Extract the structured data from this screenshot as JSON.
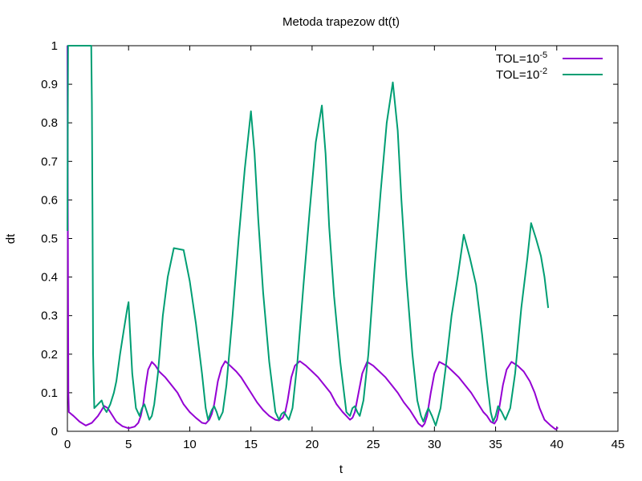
{
  "chart_data": {
    "type": "line",
    "title": "Metoda trapezow dt(t)",
    "xlabel": "t",
    "ylabel": "dt",
    "xlim": [
      0,
      45
    ],
    "ylim": [
      0,
      1
    ],
    "x_ticks": [
      0,
      5,
      10,
      15,
      20,
      25,
      30,
      35,
      40,
      45
    ],
    "y_ticks": [
      0,
      0.1,
      0.2,
      0.3,
      0.4,
      0.5,
      0.6,
      0.7,
      0.8,
      0.9,
      1
    ],
    "grid": false,
    "legend_position": "top-right",
    "series": [
      {
        "name": "TOL=10",
        "exponent": "-5",
        "color": "#9400d3",
        "x": [
          0,
          0.04,
          0.08,
          0.12,
          0.5,
          1.0,
          1.5,
          2.0,
          2.5,
          2.8,
          3.0,
          3.3,
          3.6,
          4.0,
          4.5,
          5.0,
          5.5,
          5.8,
          6.0,
          6.2,
          6.4,
          6.6,
          6.9,
          7.2,
          7.5,
          8.0,
          8.5,
          9.0,
          9.5,
          10.0,
          10.5,
          11.0,
          11.3,
          11.6,
          11.8,
          12.0,
          12.3,
          12.6,
          12.9,
          13.3,
          13.8,
          14.2,
          14.6,
          15.0,
          15.5,
          16.0,
          16.5,
          17.0,
          17.3,
          17.6,
          17.8,
          18.0,
          18.3,
          18.6,
          19.0,
          19.5,
          20.0,
          20.5,
          21.0,
          21.5,
          22.0,
          22.5,
          22.8,
          23.1,
          23.3,
          23.5,
          23.8,
          24.1,
          24.5,
          25.0,
          25.5,
          26.0,
          26.5,
          27.0,
          27.5,
          28.0,
          28.4,
          28.7,
          29.0,
          29.2,
          29.4,
          29.7,
          30.0,
          30.4,
          31.0,
          31.5,
          32.0,
          32.5,
          33.0,
          33.5,
          34.0,
          34.3,
          34.6,
          34.9,
          35.1,
          35.3,
          35.6,
          35.9,
          36.3,
          36.8,
          37.3,
          37.8,
          38.2,
          38.6,
          39.0,
          39.5,
          39.9,
          40.1
        ],
        "y": [
          1.0,
          0.51,
          0.1,
          0.05,
          0.04,
          0.025,
          0.015,
          0.022,
          0.04,
          0.055,
          0.066,
          0.06,
          0.045,
          0.025,
          0.013,
          0.008,
          0.012,
          0.022,
          0.04,
          0.07,
          0.12,
          0.16,
          0.18,
          0.17,
          0.155,
          0.14,
          0.12,
          0.1,
          0.07,
          0.05,
          0.035,
          0.022,
          0.02,
          0.03,
          0.045,
          0.07,
          0.13,
          0.165,
          0.182,
          0.17,
          0.155,
          0.14,
          0.12,
          0.1,
          0.075,
          0.055,
          0.04,
          0.03,
          0.028,
          0.035,
          0.05,
          0.08,
          0.14,
          0.17,
          0.182,
          0.17,
          0.155,
          0.14,
          0.12,
          0.1,
          0.07,
          0.05,
          0.04,
          0.03,
          0.035,
          0.05,
          0.1,
          0.15,
          0.18,
          0.17,
          0.155,
          0.14,
          0.12,
          0.1,
          0.075,
          0.055,
          0.035,
          0.02,
          0.012,
          0.02,
          0.04,
          0.1,
          0.15,
          0.18,
          0.17,
          0.155,
          0.14,
          0.12,
          0.1,
          0.075,
          0.05,
          0.04,
          0.025,
          0.02,
          0.03,
          0.06,
          0.12,
          0.16,
          0.18,
          0.17,
          0.155,
          0.13,
          0.1,
          0.06,
          0.03,
          0.015,
          0.005,
          0.01
        ]
      },
      {
        "name": "TOL=10",
        "exponent": "-2",
        "color": "#009e73",
        "x": [
          0,
          0.05,
          0.1,
          0.5,
          1.0,
          1.5,
          1.95,
          2.0,
          2.05,
          2.1,
          2.2,
          2.5,
          2.8,
          3.0,
          3.2,
          3.5,
          3.8,
          4.0,
          4.3,
          4.6,
          4.9,
          5.0,
          5.1,
          5.3,
          5.6,
          5.9,
          6.1,
          6.3,
          6.5,
          6.7,
          6.9,
          7.1,
          7.4,
          7.8,
          8.2,
          8.7,
          9.5,
          10.0,
          10.5,
          11.0,
          11.3,
          11.5,
          11.8,
          12.0,
          12.2,
          12.4,
          12.7,
          13.0,
          13.5,
          14.0,
          14.5,
          15.0,
          15.3,
          15.6,
          16.0,
          16.5,
          17.0,
          17.3,
          17.5,
          17.7,
          17.9,
          18.1,
          18.4,
          18.8,
          19.3,
          19.8,
          20.3,
          20.8,
          21.1,
          21.4,
          21.8,
          22.3,
          22.8,
          23.1,
          23.3,
          23.5,
          23.7,
          23.9,
          24.2,
          24.6,
          25.1,
          25.6,
          26.1,
          26.6,
          27.0,
          27.3,
          27.7,
          28.2,
          28.6,
          28.9,
          29.1,
          29.3,
          29.5,
          29.8,
          30.1,
          30.5,
          30.9,
          31.4,
          31.9,
          32.4,
          32.9,
          33.4,
          33.9,
          34.3,
          34.6,
          34.8,
          35.0,
          35.2,
          35.5,
          35.8,
          36.2,
          36.6,
          37.1,
          37.6,
          37.9,
          38.3,
          38.7,
          39.0,
          39.3
        ],
        "y": [
          0.52,
          1.0,
          1.0,
          1.0,
          1.0,
          1.0,
          1.0,
          0.85,
          0.55,
          0.2,
          0.06,
          0.07,
          0.08,
          0.06,
          0.05,
          0.07,
          0.1,
          0.13,
          0.2,
          0.26,
          0.32,
          0.335,
          0.27,
          0.15,
          0.06,
          0.04,
          0.06,
          0.07,
          0.05,
          0.03,
          0.04,
          0.07,
          0.15,
          0.3,
          0.4,
          0.475,
          0.47,
          0.39,
          0.28,
          0.15,
          0.06,
          0.03,
          0.055,
          0.065,
          0.05,
          0.03,
          0.05,
          0.12,
          0.3,
          0.5,
          0.68,
          0.83,
          0.72,
          0.55,
          0.36,
          0.18,
          0.05,
          0.03,
          0.045,
          0.05,
          0.04,
          0.03,
          0.06,
          0.18,
          0.38,
          0.57,
          0.75,
          0.845,
          0.72,
          0.53,
          0.35,
          0.18,
          0.05,
          0.04,
          0.06,
          0.065,
          0.05,
          0.04,
          0.08,
          0.2,
          0.42,
          0.62,
          0.8,
          0.905,
          0.78,
          0.6,
          0.4,
          0.2,
          0.08,
          0.04,
          0.025,
          0.045,
          0.06,
          0.04,
          0.015,
          0.06,
          0.16,
          0.3,
          0.4,
          0.51,
          0.45,
          0.38,
          0.25,
          0.13,
          0.05,
          0.025,
          0.04,
          0.065,
          0.05,
          0.03,
          0.06,
          0.15,
          0.32,
          0.45,
          0.54,
          0.5,
          0.455,
          0.4,
          0.32
        ]
      }
    ]
  }
}
